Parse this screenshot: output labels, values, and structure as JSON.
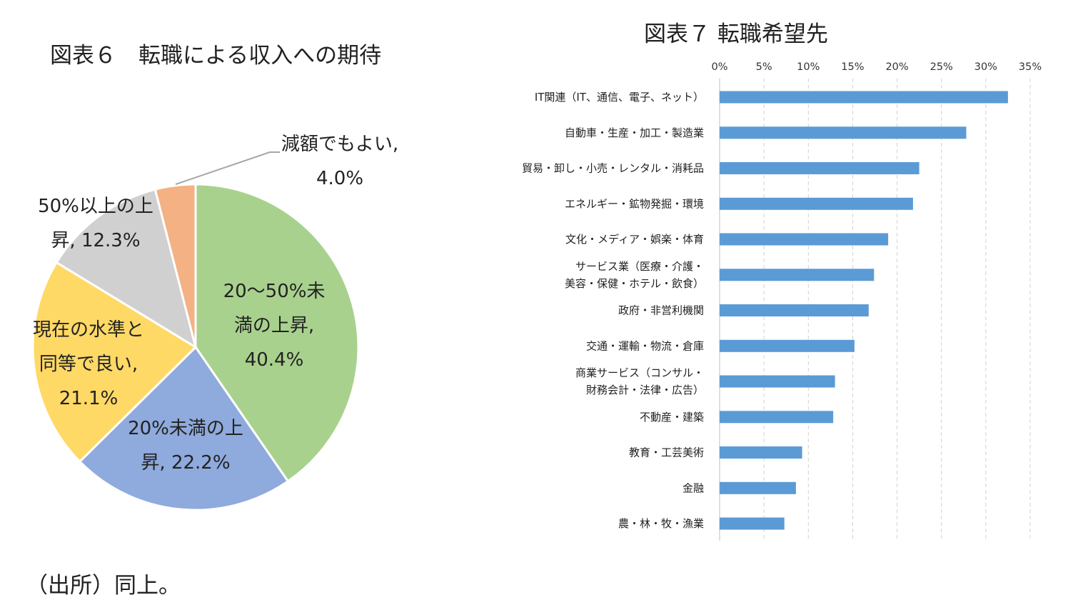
{
  "figure6": {
    "title": "図表６　転職による収入への期待"
  },
  "figure7": {
    "title": "図表７  転職希望先"
  },
  "source_note": "（出所）同上。",
  "chart_data": [
    {
      "type": "pie",
      "title": "図表６　転職による収入への期待",
      "slices": [
        {
          "label": "20～50%未満の上昇",
          "value": 40.4,
          "display": [
            "20～50%未",
            "満の上昇,",
            "40.4%"
          ],
          "color": "#a9d18e"
        },
        {
          "label": "20%未満の上昇",
          "value": 22.2,
          "display": [
            "20%未満の上",
            "昇, 22.2%"
          ],
          "color": "#8faadc"
        },
        {
          "label": "現在の水準と同等で良い",
          "value": 21.1,
          "display": [
            "現在の水準と",
            "同等で良い,",
            "21.1%"
          ],
          "color": "#ffd966"
        },
        {
          "label": "50%以上の上昇",
          "value": 12.3,
          "display": [
            "50%以上の上",
            "昇, 12.3%"
          ],
          "color": "#d0d0d0"
        },
        {
          "label": "減額でもよい",
          "value": 4.0,
          "display": [
            "減額でもよい,",
            "4.0%"
          ],
          "color": "#f4b183"
        }
      ]
    },
    {
      "type": "bar",
      "orientation": "horizontal",
      "title": "図表７  転職希望先",
      "bar_color": "#5b9bd5",
      "xlim": [
        0,
        35
      ],
      "x_ticks": [
        0,
        5,
        10,
        15,
        20,
        25,
        30,
        35
      ],
      "x_tick_labels": [
        "0%",
        "5%",
        "10%",
        "15%",
        "20%",
        "25%",
        "30%",
        "35%"
      ],
      "grid": "vertical dashed",
      "categories": [
        [
          "IT関連（IT、通信、電子、ネット）"
        ],
        [
          "自動車・生産・加工・製造業"
        ],
        [
          "貿易・卸し・小売・レンタル・消耗品"
        ],
        [
          "エネルギー・鉱物発掘・環境"
        ],
        [
          "文化・メディア・娯楽・体育"
        ],
        [
          "サービス業（医療・介護・",
          "美容・保健・ホテル・飲食）"
        ],
        [
          "政府・非営利機関"
        ],
        [
          "交通・運輸・物流・倉庫"
        ],
        [
          "商業サービス（コンサル・",
          "財務会計・法律・広告）"
        ],
        [
          "不動産・建築"
        ],
        [
          "教育・工芸美術"
        ],
        [
          "金融"
        ],
        [
          "農・林・牧・漁業"
        ]
      ],
      "values": [
        32.5,
        27.8,
        22.5,
        21.8,
        19.0,
        17.4,
        16.8,
        15.2,
        13.0,
        12.8,
        9.3,
        8.6,
        7.3
      ]
    }
  ]
}
